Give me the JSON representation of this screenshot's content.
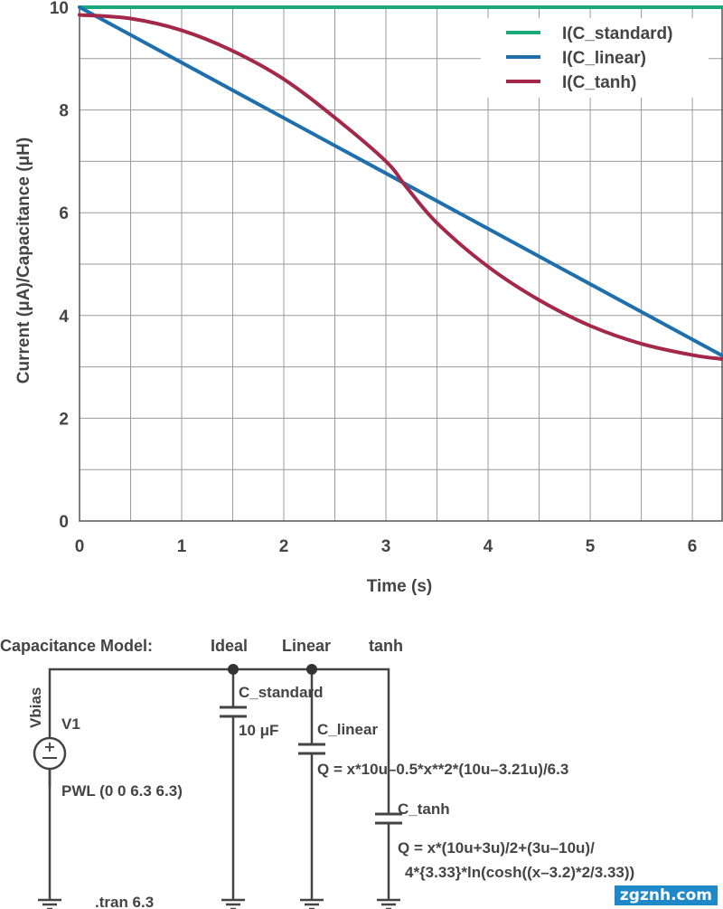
{
  "chart_data": {
    "type": "line",
    "title": "",
    "xlabel": "Time (s)",
    "ylabel": "Current (μA)/Capacitance (μH)",
    "xlim": [
      0,
      6.3
    ],
    "ylim": [
      0,
      10
    ],
    "xticks": [
      "0",
      "1",
      "2",
      "3",
      "4",
      "5",
      "6"
    ],
    "yticks": [
      "0",
      "2",
      "4",
      "6",
      "8",
      "10"
    ],
    "grid": true,
    "legend_position": "top-right",
    "series": [
      {
        "name": "I(C_standard)",
        "color": "#1aa97a",
        "x": [
          0,
          6.3
        ],
        "y": [
          10,
          10
        ]
      },
      {
        "name": "I(C_linear)",
        "color": "#1f6fad",
        "x": [
          0,
          6.3
        ],
        "y": [
          10,
          3.21
        ]
      },
      {
        "name": "I(C_tanh)",
        "color": "#a3284a",
        "x": [
          0,
          0.5,
          1,
          1.5,
          2,
          2.5,
          3,
          3.2,
          3.5,
          4,
          4.5,
          5,
          5.5,
          6,
          6.3
        ],
        "y": [
          9.85,
          9.78,
          9.55,
          9.15,
          8.6,
          7.85,
          7.0,
          6.5,
          5.8,
          4.95,
          4.3,
          3.8,
          3.45,
          3.23,
          3.15
        ]
      }
    ]
  },
  "schematic": {
    "header_label": "Capacitance Model:",
    "col_ideal": "Ideal",
    "col_linear": "Linear",
    "col_tanh": "tanh",
    "net_label": "Vbias",
    "source_name": "V1",
    "source_value": "PWL (0 0 6.3 6.3)",
    "tran": ".tran 6.3",
    "cap1_name": "C_standard",
    "cap1_value": "10 μF",
    "cap2_name": "C_linear",
    "cap2_eq": "Q = x*10u–0.5*x**2*(10u–3.21u)/6.3",
    "cap3_name": "C_tanh",
    "cap3_eq1": "Q = x*(10u+3u)/2+(3u–10u)/",
    "cap3_eq2": "4*{3.33}*ln(cosh((x–3.2)*2/3.33))"
  },
  "watermark": "zgznh.com"
}
